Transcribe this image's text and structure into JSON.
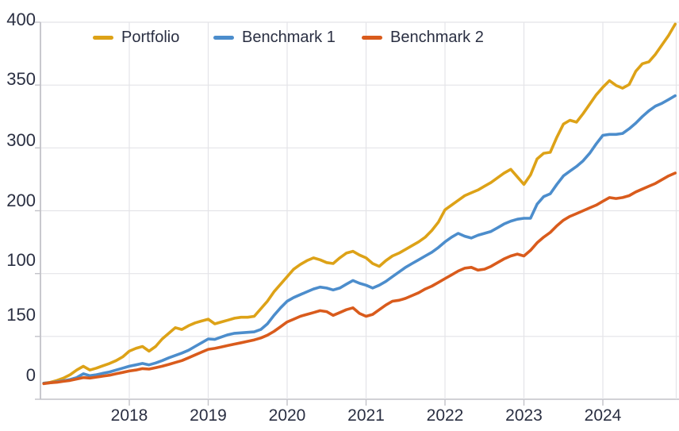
{
  "page": {
    "background": "#FFFFFF"
  },
  "chart_data": {
    "type": "line",
    "title": "",
    "legend": {
      "position": "top-inside",
      "entries": [
        "Portfolio",
        "Benchmark 1",
        "Benchmark 2"
      ]
    },
    "grid": true,
    "x_start": 2016.9167,
    "x_step": 0.0833333,
    "xlim": [
      2016.87,
      2024.96
    ],
    "ylim": [
      0,
      400
    ],
    "xticks": [
      "2018",
      "2019",
      "2020",
      "2021",
      "2022",
      "2023",
      "2024"
    ],
    "ytick_labels_top_to_bottom": [
      "400",
      "350",
      "300",
      "200",
      "100",
      "150",
      "0"
    ],
    "xlabel": "",
    "ylabel": "",
    "text_color": "#2A2F42",
    "gridline_color": "#E4E4E8",
    "axis_color": "#C2C2C8",
    "series": [
      {
        "name": "Portfolio",
        "color": "#DDA217",
        "values": [
          17,
          18,
          20,
          22.5,
          26,
          31,
          35,
          31,
          33,
          35.5,
          38,
          41,
          45,
          51,
          54,
          56,
          51,
          56,
          64,
          70,
          76,
          74,
          78,
          81,
          83,
          85,
          80,
          82,
          84,
          86,
          87,
          87,
          88,
          96,
          104,
          114,
          122,
          130,
          138,
          143,
          147,
          150,
          148,
          145,
          144,
          150,
          155,
          157,
          153,
          150,
          144,
          141,
          147,
          152,
          155,
          159,
          163,
          167,
          172,
          179,
          188,
          201,
          206,
          211,
          216,
          219,
          222,
          226,
          230,
          235,
          240,
          244,
          236,
          228,
          238,
          255,
          261,
          262,
          278,
          292,
          296,
          294,
          303,
          313,
          323,
          331,
          338,
          333,
          330,
          334,
          348,
          356,
          358,
          366,
          376,
          386,
          398
        ]
      },
      {
        "name": "Benchmark 1",
        "color": "#4C8DCC",
        "values": [
          17,
          17.5,
          18.5,
          19.5,
          21,
          23,
          27,
          25,
          26,
          27.5,
          29,
          31,
          33,
          35,
          36.5,
          38,
          36.5,
          38.5,
          41,
          44,
          46.5,
          49,
          52,
          56,
          60,
          64,
          63.5,
          66,
          68.5,
          70,
          70.5,
          71,
          71.5,
          74,
          80,
          89,
          97,
          104,
          108,
          111,
          114,
          117,
          119,
          118,
          116,
          118,
          122,
          126,
          123,
          121,
          118,
          121,
          125,
          130,
          135,
          140,
          144,
          148,
          152,
          156,
          161,
          167,
          172,
          176,
          173,
          171,
          174,
          176,
          178,
          182,
          186,
          189,
          191,
          192,
          192,
          207,
          215,
          218,
          228,
          237,
          242,
          247,
          253,
          261,
          271,
          280,
          281,
          281,
          282,
          287,
          293,
          300,
          306,
          311,
          314,
          318,
          322
        ]
      },
      {
        "name": "Benchmark 2",
        "color": "#D95B1C",
        "values": [
          16.5,
          17.5,
          18,
          19,
          20,
          21.5,
          23,
          22.5,
          23.5,
          24.5,
          25.5,
          27,
          28.5,
          30,
          31,
          32.5,
          32,
          33.5,
          35,
          37,
          39,
          41,
          44,
          47,
          50,
          53,
          54,
          55.5,
          57,
          58.5,
          60,
          61.5,
          63,
          65,
          68,
          72,
          77,
          82,
          85,
          88,
          90,
          92,
          94,
          93,
          89,
          92,
          95,
          97,
          91,
          88,
          90,
          95,
          100,
          104,
          105,
          107,
          110,
          113,
          117,
          120,
          124,
          128,
          132,
          136,
          139,
          140,
          137,
          138,
          141,
          145,
          149,
          152,
          154,
          152,
          158,
          166,
          172,
          177,
          184,
          190,
          194,
          197,
          200,
          203,
          206,
          210,
          214,
          213,
          214,
          216,
          220,
          223,
          226,
          229,
          233,
          237,
          240
        ]
      }
    ]
  }
}
